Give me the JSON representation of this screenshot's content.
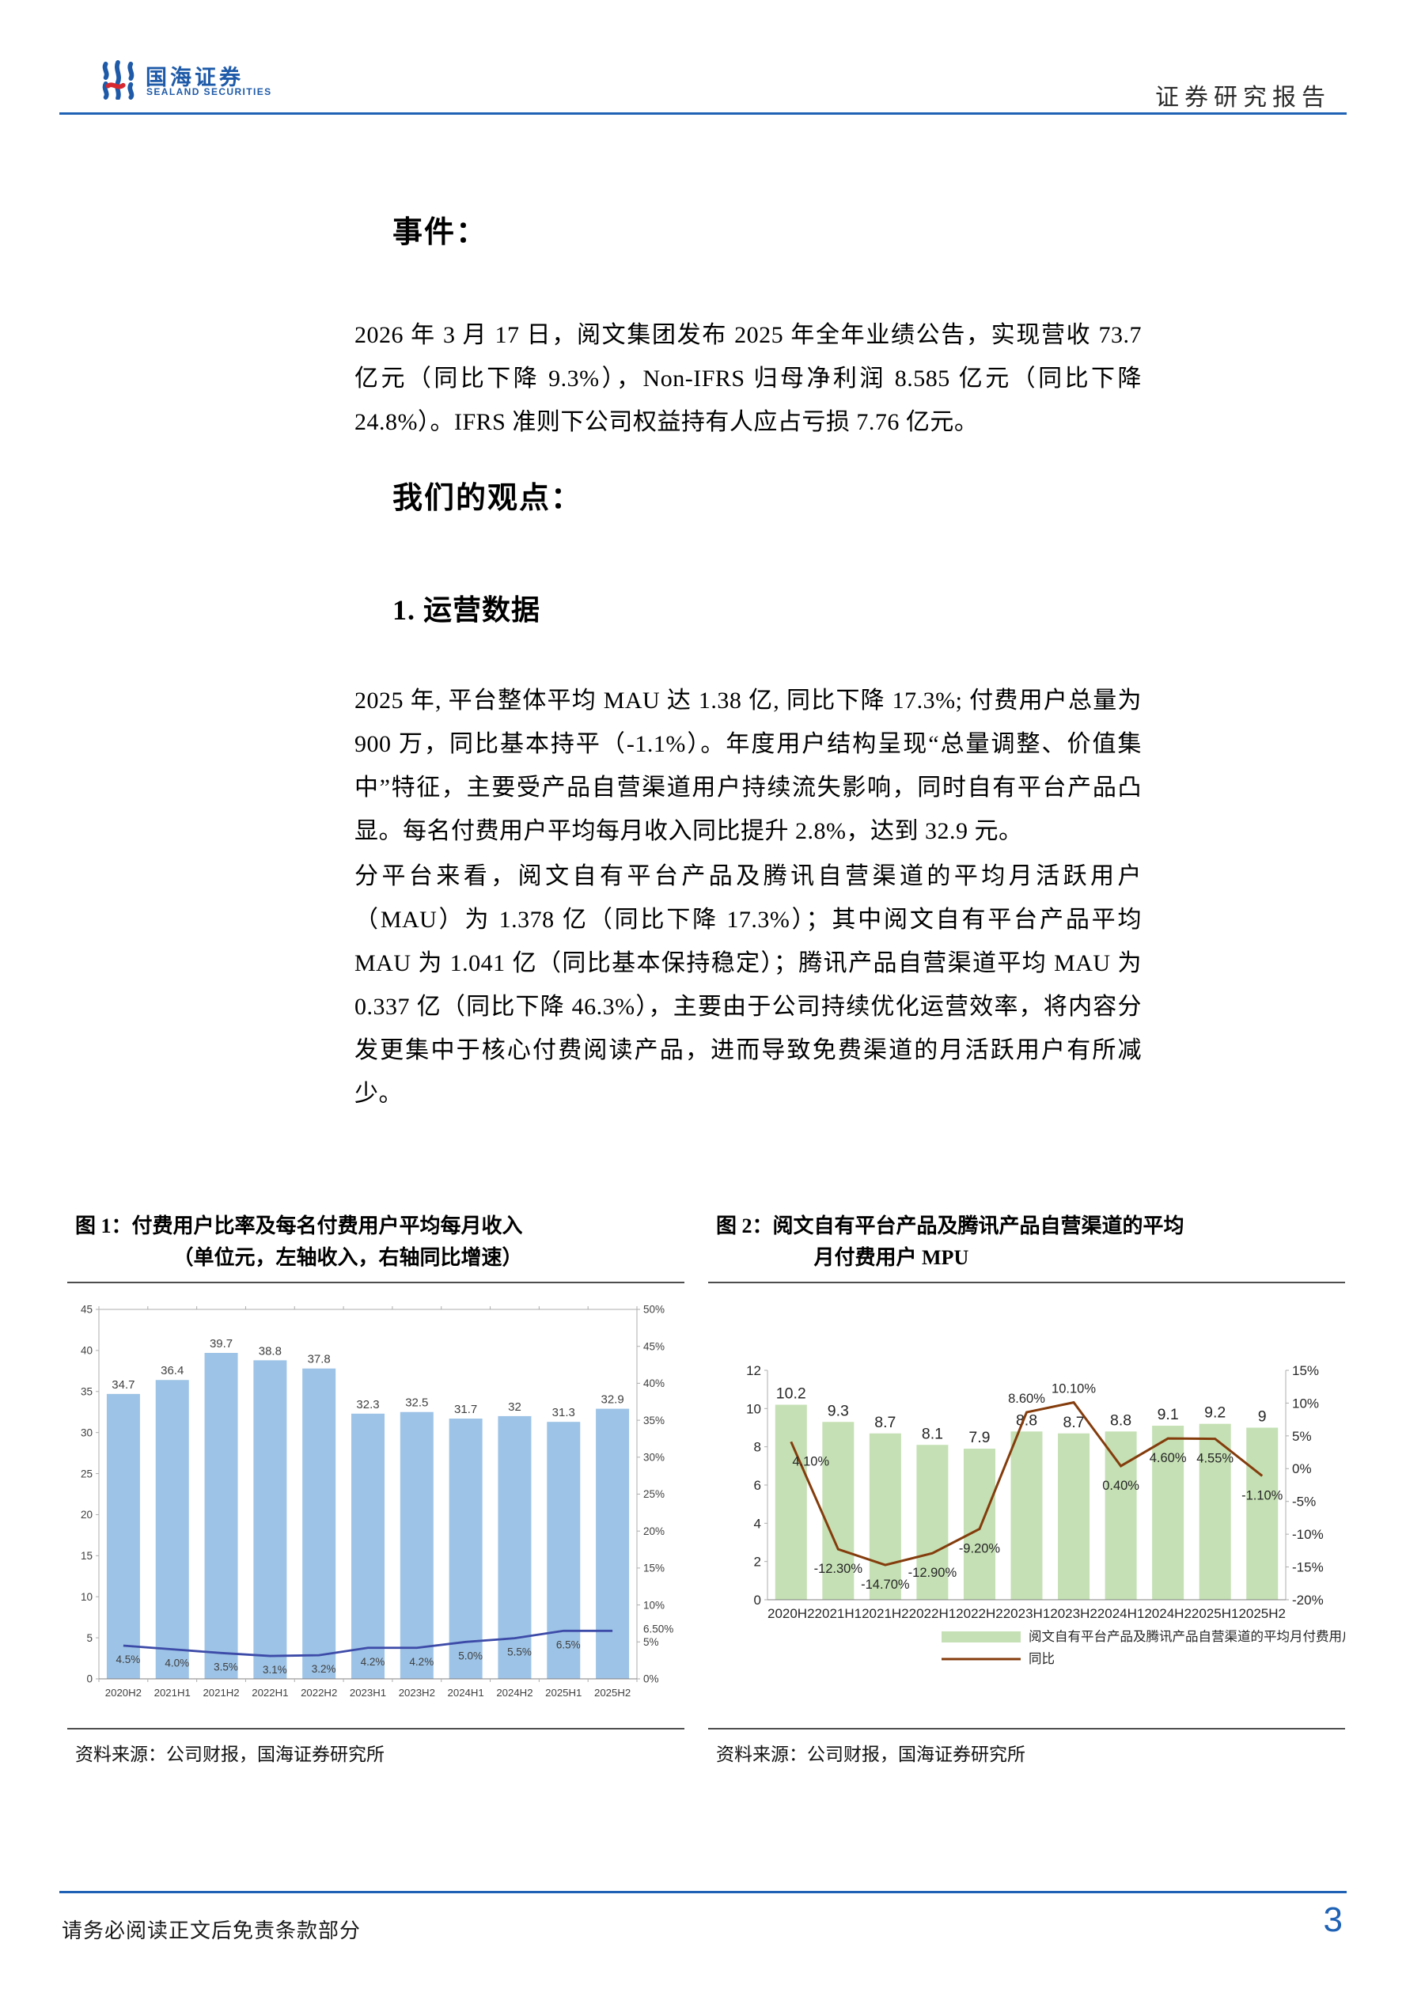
{
  "header": {
    "logo_cn": "国海证券",
    "logo_en": "SEALAND SECURITIES",
    "report_type": "证券研究报告"
  },
  "headings": {
    "event": "事件：",
    "opinion": "我们的观点：",
    "section1": "1. 运营数据"
  },
  "paragraphs": {
    "event_p1": "2026 年 3 月 17 日，阅文集团发布 2025 年全年业绩公告，实现营收 73.7 亿元（同比下降 9.3%），Non-IFRS 归母净利润 8.585 亿元（同比下降 24.8%）。IFRS 准则下公司权益持有人应占亏损 7.76 亿元。",
    "ops_p1": "2025 年, 平台整体平均 MAU 达 1.38 亿, 同比下降 17.3%; 付费用户总量为 900 万，同比基本持平（-1.1%）。年度用户结构呈现“总量调整、价值集中”特征，主要受产品自营渠道用户持续流失影响，同时自有平台产品凸显。每名付费用户平均每月收入同比提升 2.8%，达到 32.9 元。",
    "ops_p2": "分平台来看，阅文自有平台产品及腾讯自营渠道的平均月活跃用户（MAU）为 1.378 亿（同比下降 17.3%）；其中阅文自有平台产品平均 MAU 为 1.041 亿（同比基本保持稳定）；腾讯产品自营渠道平均 MAU 为 0.337 亿（同比下降 46.3%），主要由于公司持续优化运营效率，将内容分发更集中于核心付费阅读产品，进而导致免费渠道的月活跃用户有所减少。"
  },
  "figure1": {
    "label": "图 1：",
    "title_lines": [
      "付费用户比率及每名付费用户平均每月收入",
      "（单位元，左轴收入，右轴同比增速）"
    ],
    "source": "资料来源：公司财报，国海证券研究所"
  },
  "figure2": {
    "label": "图 2：",
    "title_lines": [
      "阅文自有平台产品及腾讯产品自营渠道的平均",
      "月付费用户 MPU"
    ],
    "source": "资料来源：公司财报，国海证券研究所"
  },
  "chart_data": [
    {
      "type": "bar+line",
      "title": "付费用户比率及每名付费用户平均每月收入（单位元，左轴收入，右轴同比增速）",
      "categories": [
        "2020H2",
        "2021H1",
        "2021H2",
        "2022H1",
        "2022H2",
        "2023H1",
        "2023H2",
        "2024H1",
        "2024H2",
        "2025H1",
        "2025H2"
      ],
      "series": [
        {
          "name": "每名付费用户平均每月收入（元）",
          "type": "bar",
          "axis": "left",
          "color": "#9DC3E6",
          "values": [
            34.7,
            36.4,
            39.7,
            38.8,
            37.8,
            32.3,
            32.5,
            31.7,
            32,
            31.3,
            32.9
          ],
          "labels": [
            "34.7",
            "36.4",
            "39.7",
            "38.8",
            "37.8",
            "32.3",
            "32.5",
            "31.7",
            "32",
            "31.3",
            "32.9"
          ]
        },
        {
          "name": "同比增速",
          "type": "line",
          "axis": "right",
          "color": "#3D4BA8",
          "values": [
            4.5,
            4.0,
            3.5,
            3.1,
            3.2,
            4.2,
            4.2,
            5.0,
            5.5,
            6.5,
            6.5
          ],
          "labels": [
            "4.5%",
            "4.0%",
            "3.5%",
            "3.1%",
            "3.2%",
            "4.2%",
            "4.2%",
            "5.0%",
            "5.5%",
            "6.5%",
            "6.50%"
          ]
        }
      ],
      "left_axis": {
        "min": 0,
        "max": 45,
        "step": 5
      },
      "right_axis": {
        "min": 0,
        "max": 50,
        "step": 5,
        "suffix": "%"
      },
      "grid": false,
      "legend_position": "none"
    },
    {
      "type": "bar+line",
      "title": "阅文自有平台产品及腾讯产品自营渠道的平均月付费用户 MPU",
      "categories": [
        "2020H2",
        "2021H1",
        "2021H2",
        "2022H1",
        "2022H2",
        "2023H1",
        "2023H2",
        "2024H1",
        "2024H2",
        "2025H1",
        "2025H2"
      ],
      "series": [
        {
          "name": "阅文自有平台产品及腾讯产品自营渠道的平均月付费用户MPU（百万）",
          "type": "bar",
          "axis": "left",
          "color": "#C5E0B4",
          "values": [
            10.2,
            9.3,
            8.7,
            8.1,
            7.9,
            8.8,
            8.7,
            8.8,
            9.1,
            9.2,
            9
          ],
          "labels": [
            "10.2",
            "9.3",
            "8.7",
            "8.1",
            "7.9",
            "8.8",
            "8.7",
            "8.8",
            "9.1",
            "9.2",
            "9"
          ]
        },
        {
          "name": "同比",
          "type": "line",
          "axis": "right",
          "color": "#843C0C",
          "values": [
            4.1,
            -12.3,
            -14.7,
            -12.9,
            -9.2,
            8.6,
            10.1,
            0.4,
            4.6,
            4.55,
            -1.1
          ],
          "labels": [
            "4.10%",
            "-12.30%",
            "-14.70%",
            "-12.90%",
            "-9.20%",
            "8.60%",
            "10.10%",
            "0.40%",
            "4.60%",
            "4.55%",
            "-1.10%"
          ]
        }
      ],
      "left_axis": {
        "min": 0,
        "max": 12,
        "step": 2
      },
      "right_axis": {
        "min": -20,
        "max": 15,
        "step": 5,
        "suffix": "%"
      },
      "grid": false,
      "legend_position": "bottom"
    }
  ],
  "footer": {
    "disclaimer": "请务必阅读正文后免责条款部分",
    "page_number": "3"
  },
  "colors": {
    "brand_blue": "#1E5AA8",
    "rule_blue": "#1F62B5",
    "bar1": "#9DC3E6",
    "line1": "#3D4BA8",
    "bar2": "#C5E0B4",
    "line2": "#843C0C"
  }
}
